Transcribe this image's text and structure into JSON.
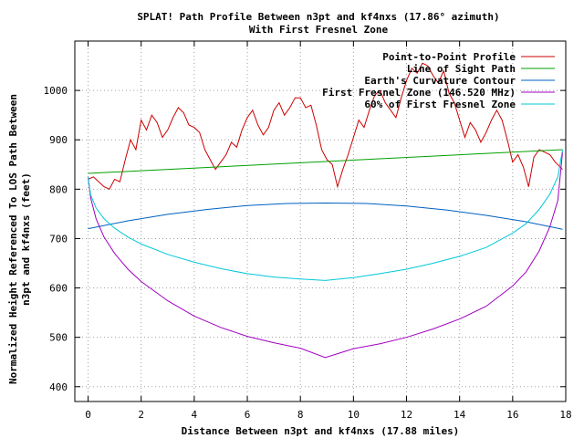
{
  "chart_data": {
    "type": "line",
    "title_line1": "SPLAT! Path Profile Between n3pt and kf4nxs (17.86° azimuth)",
    "title_line2": "With First Fresnel Zone",
    "xlabel": "Distance Between n3pt and kf4nxs (17.88 miles)",
    "ylabel_line1": "Normalized Height Referenced To LOS Path Between",
    "ylabel_line2": "n3pt and kf4nxs (feet)",
    "xlim": [
      -0.5,
      18
    ],
    "ylim": [
      370,
      1100
    ],
    "xticks": [
      0,
      2,
      4,
      6,
      8,
      10,
      12,
      14,
      16,
      18
    ],
    "yticks": [
      400,
      500,
      600,
      700,
      800,
      900,
      1000
    ],
    "grid": true,
    "legend_position": "top-right",
    "series": [
      {
        "name": "Point-to-Point Profile",
        "color": "#cc0000",
        "x": [
          0,
          0.2,
          0.4,
          0.6,
          0.8,
          1.0,
          1.2,
          1.4,
          1.6,
          1.8,
          2.0,
          2.2,
          2.4,
          2.6,
          2.8,
          3.0,
          3.2,
          3.4,
          3.6,
          3.8,
          4.0,
          4.2,
          4.4,
          4.6,
          4.8,
          5.0,
          5.2,
          5.4,
          5.6,
          5.8,
          6.0,
          6.2,
          6.4,
          6.6,
          6.8,
          7.0,
          7.2,
          7.4,
          7.6,
          7.8,
          8.0,
          8.2,
          8.4,
          8.6,
          8.8,
          9.0,
          9.2,
          9.4,
          9.6,
          9.8,
          10.0,
          10.2,
          10.4,
          10.6,
          10.8,
          11.0,
          11.2,
          11.4,
          11.6,
          11.8,
          12.0,
          12.2,
          12.4,
          12.6,
          12.8,
          13.0,
          13.2,
          13.4,
          13.6,
          13.8,
          14.0,
          14.2,
          14.4,
          14.6,
          14.8,
          15.0,
          15.2,
          15.4,
          15.6,
          15.8,
          16.0,
          16.2,
          16.4,
          16.6,
          16.8,
          17.0,
          17.2,
          17.4,
          17.6,
          17.88
        ],
        "values": [
          820,
          825,
          815,
          805,
          800,
          820,
          815,
          860,
          900,
          880,
          940,
          920,
          950,
          935,
          905,
          920,
          945,
          965,
          955,
          930,
          925,
          915,
          880,
          860,
          840,
          855,
          870,
          895,
          885,
          920,
          945,
          960,
          930,
          910,
          925,
          960,
          975,
          950,
          965,
          985,
          985,
          965,
          970,
          930,
          880,
          860,
          850,
          805,
          840,
          870,
          905,
          940,
          925,
          960,
          990,
          1000,
          975,
          960,
          945,
          985,
          1020,
          1045,
          1035,
          1055,
          1050,
          1030,
          1015,
          1040,
          995,
          975,
          940,
          905,
          935,
          920,
          895,
          915,
          940,
          960,
          940,
          900,
          855,
          870,
          845,
          805,
          865,
          880,
          875,
          870,
          855,
          840
        ]
      },
      {
        "name": "Line of Sight Path",
        "color": "#00a000",
        "x": [
          0,
          17.88
        ],
        "values": [
          832,
          880
        ]
      },
      {
        "name": "Earth's Curvature Contour",
        "color": "#0060c0",
        "x": [
          0,
          1.5,
          3,
          4.5,
          6,
          7.5,
          8.94,
          10.5,
          12,
          13.5,
          15,
          16.5,
          17.88
        ],
        "values": [
          720,
          736,
          749,
          759,
          767,
          771,
          772,
          771,
          766,
          758,
          747,
          734,
          719
        ]
      },
      {
        "name": "First Fresnel Zone (146.520 MHz)",
        "color": "#a000c0",
        "x": [
          0,
          0.1,
          0.3,
          0.6,
          1.0,
          1.5,
          2.0,
          3.0,
          4.0,
          5.0,
          6.0,
          7.0,
          8.0,
          8.94,
          10.0,
          11.0,
          12.0,
          13.0,
          14.0,
          15.0,
          16.0,
          16.5,
          17.0,
          17.4,
          17.7,
          17.88
        ],
        "values": [
          825,
          782,
          740,
          703,
          670,
          638,
          613,
          574,
          543,
          520,
          502,
          489,
          478,
          459,
          477,
          487,
          500,
          517,
          537,
          563,
          604,
          632,
          675,
          724,
          777,
          875
        ]
      },
      {
        "name": "60% of First Fresnel Zone",
        "color": "#00c8d8",
        "x": [
          0,
          0.1,
          0.3,
          0.6,
          1.0,
          1.5,
          2.0,
          3.0,
          4.0,
          5.0,
          6.0,
          7.0,
          8.0,
          8.94,
          10.0,
          11.0,
          12.0,
          13.0,
          14.0,
          15.0,
          16.0,
          16.5,
          17.0,
          17.4,
          17.7,
          17.88
        ],
        "values": [
          825,
          788,
          762,
          740,
          721,
          703,
          689,
          668,
          652,
          639,
          629,
          622,
          618,
          615,
          621,
          629,
          638,
          650,
          664,
          682,
          711,
          730,
          759,
          790,
          825,
          880
        ]
      }
    ]
  }
}
